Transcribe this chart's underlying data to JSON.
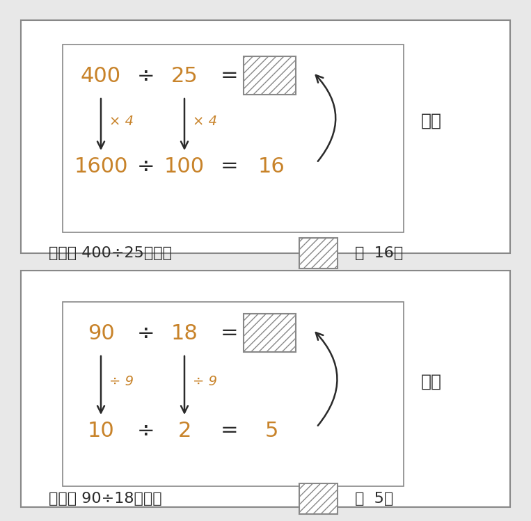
{
  "bg_color": "#e8e8e8",
  "panel_bg": "#ffffff",
  "inner_bg": "#ffffff",
  "orange_color": "#c8832a",
  "black_color": "#2a2a2a",
  "hatch_edge": "#888888",
  "arrow_color": "#2a2a2a",
  "fuze1_text": "因此， 400÷25的答案",
  "fuze1_answer": "是  16。",
  "fuze2_text": "因此， 90÷18的答案",
  "fuze2_answer": "是  5。",
  "bubian": "不变",
  "p1_num1": "400",
  "p1_num2": "25",
  "p1_op1": "× 4",
  "p1_op2": "× 4",
  "p1_num3": "1600",
  "p1_num4": "100",
  "p1_ans": "16",
  "p2_num1": "90",
  "p2_num2": "18",
  "p2_op1": "÷ 9",
  "p2_op2": "÷ 9",
  "p2_num3": "10",
  "p2_num4": "2",
  "p2_ans": "5"
}
